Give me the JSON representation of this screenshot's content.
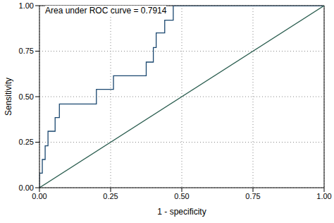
{
  "chart_data": {
    "type": "line",
    "annotation": "Area under ROC curve = 0.7914",
    "x_label": "1 - specificity",
    "y_label": "Sensitivity",
    "xlim": [
      0,
      1
    ],
    "ylim": [
      0,
      1
    ],
    "xticks": [
      {
        "value": 0,
        "label": "0.00"
      },
      {
        "value": 0.25,
        "label": "0.25"
      },
      {
        "value": 0.5,
        "label": "0.50"
      },
      {
        "value": 0.75,
        "label": "0.75"
      },
      {
        "value": 1,
        "label": "1.00"
      }
    ],
    "yticks": [
      {
        "value": 0,
        "label": "0.00"
      },
      {
        "value": 0.25,
        "label": "0.25"
      },
      {
        "value": 0.5,
        "label": "0.50"
      },
      {
        "value": 0.75,
        "label": "0.75"
      },
      {
        "value": 1,
        "label": "1.00"
      }
    ],
    "grid": true,
    "series": [
      {
        "color": "#1a476f",
        "marker": "none",
        "line_style": "solid",
        "x": [
          0,
          0,
          0.01,
          0.01,
          0.02,
          0.02,
          0.03,
          0.03,
          0.055,
          0.055,
          0.07,
          0.07,
          0.2,
          0.2,
          0.26,
          0.26,
          0.375,
          0.375,
          0.4,
          0.4,
          0.41,
          0.41,
          0.44,
          0.44,
          0.47,
          0.47,
          1
        ],
        "values": [
          0,
          0.08,
          0.08,
          0.155,
          0.155,
          0.23,
          0.23,
          0.31,
          0.31,
          0.385,
          0.385,
          0.46,
          0.46,
          0.54,
          0.54,
          0.615,
          0.615,
          0.69,
          0.69,
          0.77,
          0.77,
          0.85,
          0.85,
          0.92,
          0.92,
          1,
          1
        ]
      },
      {
        "color": "#2a5d4f",
        "marker": "none",
        "line_style": "solid",
        "x": [
          0,
          1
        ],
        "values": [
          0,
          1
        ]
      }
    ]
  }
}
